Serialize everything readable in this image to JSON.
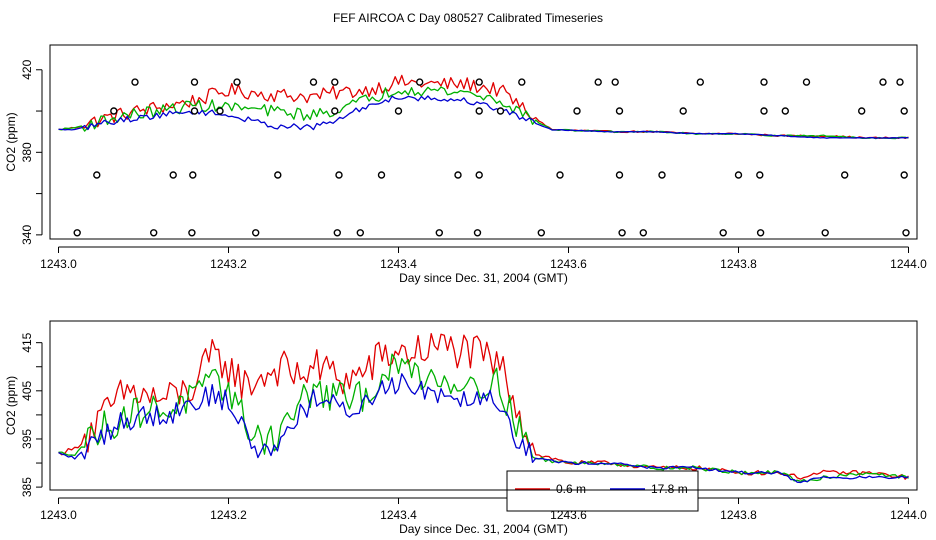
{
  "title": "FEF AIRCOA C  Day 080527  Calibrated Timeseries",
  "colors": {
    "red": "#e00000",
    "green": "#00b000",
    "blue": "#0000d0",
    "axis": "#000000"
  },
  "chart_data": [
    {
      "type": "line",
      "xlabel": "Day since Dec. 31, 2004 (GMT)",
      "ylabel": "CO2 (ppm)",
      "xlim": [
        1242.99,
        1244.01
      ],
      "ylim": [
        338,
        432
      ],
      "xticks": [
        1243.0,
        1243.2,
        1243.4,
        1243.6,
        1243.8,
        1244.0
      ],
      "xtick_labels": [
        "1243.0",
        "1243.2",
        "1243.4",
        "1243.6",
        "1243.8",
        "1244.0"
      ],
      "yticks": [
        340,
        380,
        420
      ],
      "ytick_labels": [
        "340",
        "380",
        "420"
      ],
      "yminor_ticks": [
        360,
        400
      ],
      "knots": {
        "x": [
          1243.0,
          1243.02,
          1243.05,
          1243.08,
          1243.12,
          1243.16,
          1243.2,
          1243.25,
          1243.3,
          1243.33,
          1243.36,
          1243.4,
          1243.44,
          1243.48,
          1243.52,
          1243.55,
          1243.58,
          1243.65,
          1243.7,
          1243.75,
          1243.8,
          1243.85,
          1243.9,
          1243.95,
          1244.0
        ],
        "red": [
          391,
          392,
          396,
          399,
          402,
          405,
          410,
          408,
          407,
          409,
          410,
          414,
          413,
          413,
          410,
          400,
          391,
          390,
          390,
          389,
          389,
          388,
          388,
          387,
          387
        ],
        "green": [
          391,
          392,
          395,
          398,
          400,
          403,
          402,
          400,
          398,
          401,
          405,
          411,
          410,
          409,
          405,
          398,
          391,
          390,
          390,
          389,
          389,
          388,
          388,
          387,
          387
        ],
        "blue": [
          391,
          391,
          394,
          396,
          398,
          400,
          398,
          393,
          392,
          396,
          402,
          407,
          406,
          405,
          401,
          396,
          391,
          390,
          390,
          389,
          389,
          388,
          387,
          387,
          387
        ]
      },
      "noise_amplitude": {
        "red": 3.5,
        "green": 3.0,
        "blue": 1.5
      },
      "markers": {
        "symbol": "circle",
        "x": [
          1243.09,
          1243.16,
          1243.21,
          1243.3,
          1243.325,
          1243.425,
          1243.495,
          1243.545,
          1243.635,
          1243.655,
          1243.755,
          1243.83,
          1243.88,
          1243.97,
          1243.99,
          1243.065,
          1243.16,
          1243.19,
          1243.325,
          1243.4,
          1243.495,
          1243.52,
          1243.61,
          1243.66,
          1243.735,
          1243.83,
          1243.855,
          1243.945,
          1243.995,
          1243.045,
          1243.135,
          1243.158,
          1243.258,
          1243.33,
          1243.38,
          1243.47,
          1243.495,
          1243.59,
          1243.66,
          1243.71,
          1243.8,
          1243.825,
          1243.925,
          1243.995,
          1243.022,
          1243.112,
          1243.157,
          1243.232,
          1243.328,
          1243.355,
          1243.448,
          1243.493,
          1243.568,
          1243.663,
          1243.688,
          1243.782,
          1243.826,
          1243.902,
          1243.997
        ],
        "y": [
          414,
          414,
          414,
          414,
          414,
          414,
          414,
          414,
          414,
          414,
          414,
          414,
          414,
          414,
          414,
          400,
          400,
          400,
          400,
          400,
          400,
          400,
          400,
          400,
          400,
          400,
          400,
          400,
          400,
          369,
          369,
          369,
          369,
          369,
          369,
          369,
          369,
          369,
          369,
          369,
          369,
          369,
          369,
          369,
          341,
          341,
          341,
          341,
          341,
          341,
          341,
          341,
          341,
          341,
          341,
          341,
          341,
          341,
          341
        ]
      }
    },
    {
      "type": "line",
      "xlabel": "Day since Dec. 31, 2004 (GMT)",
      "ylabel": "CO2 (ppm)",
      "xlim": [
        1242.99,
        1244.01
      ],
      "ylim": [
        384.4,
        419.5
      ],
      "xticks": [
        1243.0,
        1243.2,
        1243.4,
        1243.6,
        1243.8,
        1244.0
      ],
      "xtick_labels": [
        "1243.0",
        "1243.2",
        "1243.4",
        "1243.6",
        "1243.8",
        "1244.0"
      ],
      "yticks": [
        385,
        395,
        405,
        415
      ],
      "ytick_labels": [
        "385",
        "395",
        "405",
        "415"
      ],
      "yminor_ticks": [
        390,
        400,
        410
      ],
      "knots": {
        "x": [
          1243.0,
          1243.02,
          1243.04,
          1243.06,
          1243.08,
          1243.1,
          1243.12,
          1243.14,
          1243.16,
          1243.18,
          1243.2,
          1243.22,
          1243.24,
          1243.26,
          1243.28,
          1243.3,
          1243.32,
          1243.34,
          1243.36,
          1243.38,
          1243.4,
          1243.42,
          1243.44,
          1243.46,
          1243.48,
          1243.5,
          1243.52,
          1243.54,
          1243.56,
          1243.6,
          1243.65,
          1243.7,
          1243.75,
          1243.8,
          1243.85,
          1243.87,
          1243.9,
          1243.95,
          1244.0
        ],
        "red": [
          392,
          393,
          397,
          401,
          405,
          404,
          403,
          404,
          406,
          412,
          410,
          406,
          408,
          410,
          408,
          410,
          409,
          407,
          409,
          412,
          413,
          413,
          414,
          414,
          413,
          412,
          410,
          402,
          392,
          390,
          390,
          389,
          389,
          388,
          388,
          387,
          388,
          388,
          387
        ],
        "green": [
          392,
          392,
          396,
          398,
          400,
          401,
          401,
          402,
          404,
          406,
          406,
          398,
          395,
          396,
          402,
          405,
          404,
          403,
          404,
          408,
          410,
          409,
          408,
          407,
          407,
          407,
          406,
          398,
          391,
          390,
          390,
          389,
          389,
          388,
          388,
          386,
          387,
          388,
          387
        ],
        "blue": [
          392,
          391,
          394,
          397,
          399,
          400,
          400,
          401,
          403,
          404,
          403,
          396,
          392,
          394,
          400,
          403,
          402,
          401,
          402,
          406,
          407,
          406,
          405,
          404,
          404,
          404,
          403,
          395,
          391,
          390,
          390,
          389,
          389,
          388,
          388,
          386,
          387,
          387,
          387
        ]
      },
      "noise_amplitude": {
        "red": 4.0,
        "green": 3.5,
        "blue": 2.5
      },
      "legend": {
        "placement": "bottom-center",
        "entries": [
          {
            "label": "0.6 m",
            "color": "#e00000"
          },
          {
            "label": "17.8 m",
            "color": "#0000d0"
          }
        ]
      }
    }
  ]
}
